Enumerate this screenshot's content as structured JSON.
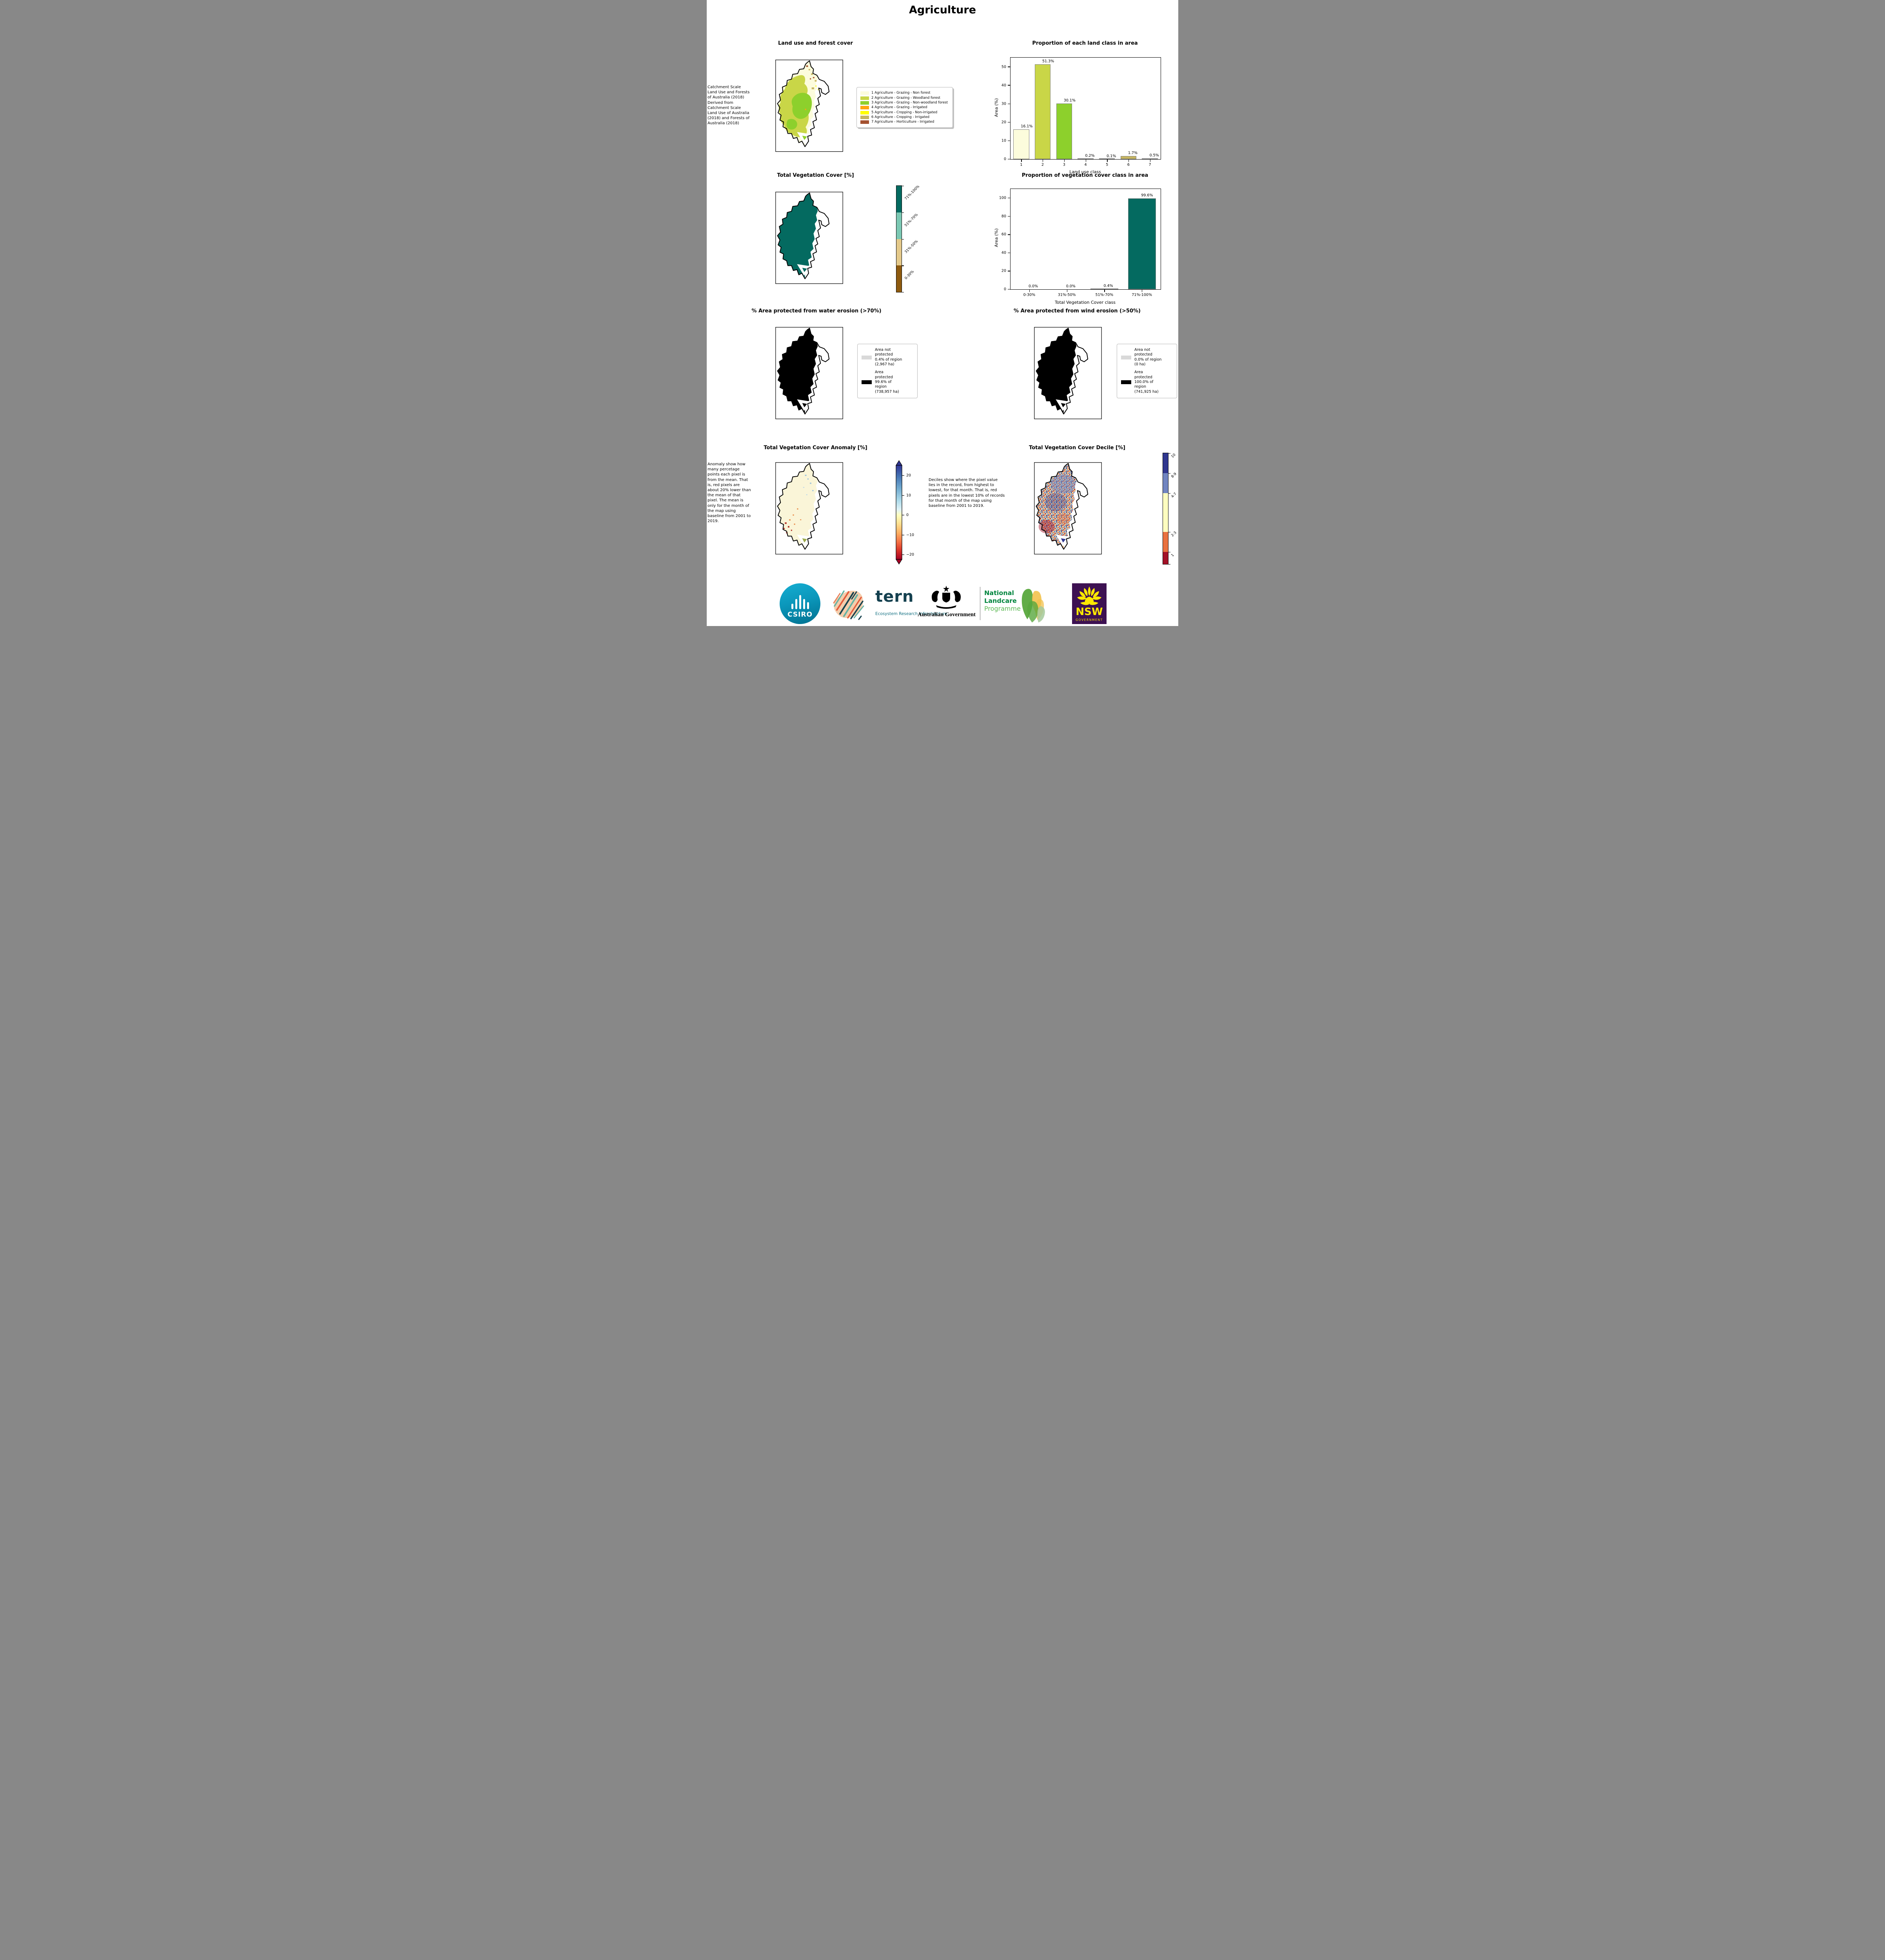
{
  "page": {
    "title": "Agriculture"
  },
  "colors": {
    "lu1": "#FCFCDC",
    "lu2": "#C9D647",
    "lu3": "#8DD02C",
    "lu4": "#FFA510",
    "lu5": "#FFFF00",
    "lu6": "#C6B561",
    "lu7": "#A4512F",
    "veg-teal": "#046A60",
    "veg-lteal": "#7BC8B3",
    "veg-tan": "#E4C98A",
    "veg-brown": "#8E5A0F",
    "not-protected": "#D9D9D9",
    "protected": "#000000",
    "an-top": "#313695",
    "an-bot": "#A50026",
    "an-base": "#FAF5D8",
    "d10": "#30378F",
    "d89": "#7185C1",
    "d47": "#FDFDC0",
    "d23": "#E9713F",
    "d1": "#A31127",
    "bar-edge": "#808080",
    "tern-dark": "#14404F",
    "tern-teal": "#137082",
    "tern-orange": "#E55C3C",
    "tern-peach": "#F2C49E",
    "tern-sea": "#66B3A4",
    "gov-green": "#00843D",
    "gov-green-light": "#5BB853",
    "leaf-1": "#58A83D",
    "leaf-2": "#F2C24E",
    "leaf-3": "#7FBE62",
    "leaf-4": "#A4C99A",
    "nsw-purple": "#3D1152",
    "nsw-yellow": "#FFE900"
  },
  "chart_data": [
    {
      "type": "bar",
      "title": "Proportion of each land class in area",
      "xlabel": "Land use class",
      "ylabel": "Area (%)",
      "categories": [
        "1",
        "2",
        "3",
        "4",
        "5",
        "6",
        "7"
      ],
      "values": [
        16.1,
        51.3,
        30.1,
        0.2,
        0.1,
        1.7,
        0.5
      ],
      "value_labels": [
        "16.1%",
        "51.3%",
        "30.1%",
        "0.2%",
        "0.1%",
        "1.7%",
        "0.5%"
      ],
      "yticks": [
        "0",
        "10",
        "20",
        "30",
        "40",
        "50"
      ],
      "ylim": [
        0,
        55
      ],
      "grid": false,
      "legend_position": "none"
    },
    {
      "type": "bar",
      "title": "Proportion of vegetation cover class in area",
      "xlabel": "Total Vegetation Cover class",
      "ylabel": "Area (%)",
      "categories": [
        "0-30%",
        "31%-50%",
        "51%-70%",
        "71%-100%"
      ],
      "values": [
        0.0,
        0.0,
        0.4,
        99.6
      ],
      "value_labels": [
        "0.0%",
        "0.0%",
        "0.4%",
        "99.6%"
      ],
      "yticks": [
        "0",
        "20",
        "40",
        "60",
        "80",
        "100"
      ],
      "ylim": [
        0,
        110
      ],
      "grid": false,
      "legend_position": "none"
    }
  ],
  "maps": {
    "land_use": {
      "title": "Land use and forest cover",
      "source_note": " Catchment Scale Land Use and Forests of Australia (2018) Derived from Catchment Scale Land Use of Australia (2018) and Forests of Australia (2018)",
      "legend": [
        "1 Agriculture - Grazing - Non forest",
        "2 Agriculture - Grazing - Woodland forest",
        "3 Agriculture - Grazing - Non-woodland forest",
        "4 Agriculture - Grazing - Irrigated",
        "5 Agriculture - Cropping - Non-irrigated",
        "6 Agriculture - Cropping - Irrigated",
        "7 Agriculture - Horticulture - Irrigated"
      ]
    },
    "veg_cover": {
      "title": "Total Vegetation Cover [%]",
      "colorbar_classes": [
        "71%-100%",
        "51%-70%",
        "31%-50%",
        "0-30%"
      ]
    },
    "water_erosion": {
      "title": "% Area protected from water erosion (>70%)",
      "not_protected_label": "Area not protected 0.4% of region (2,967 ha)",
      "protected_label": "Area protected 99.6% of region (738,957 ha)"
    },
    "wind_erosion": {
      "title": "% Area protected from wind erosion (>50%)",
      "not_protected_label": "Area not protected 0.0% of region (0 ha)",
      "protected_label": "Area protected 100.0% of region (741,925 ha)"
    },
    "anomaly": {
      "title": "Total Vegetation Cover Anomaly [%]",
      "note": "Anomaly show how many percetage points each pixel is from the mean. That is, red pixels are about 20% lower than the mean of that pixel. The mean is only for the month of the map using baseline from 2001 to 2019.",
      "colorbar_ticks": [
        "20",
        "10",
        "0",
        "−10",
        "−20"
      ]
    },
    "decile": {
      "title": "Total Vegetation Cover Decile [%]",
      "note": "Deciles show where the pixel value lies in the record, from highest to lowest, for that month. That is, red pixels are in the lowest 10% of records for that month of the map using baseline from 2001 to 2019.",
      "colorbar_classes": [
        "10",
        "8-9",
        "4-7",
        "2-3",
        "1"
      ]
    }
  },
  "footer": {
    "csiro": "CSIRO",
    "tern_name": "tern",
    "tern_subtitle": "Ecosystem Research Infrastructure",
    "aus_gov": "Australian Government",
    "nlp": [
      "National",
      "Landcare",
      "Programme"
    ],
    "nsw_name": "NSW",
    "nsw_sub": "GOVERNMENT"
  }
}
